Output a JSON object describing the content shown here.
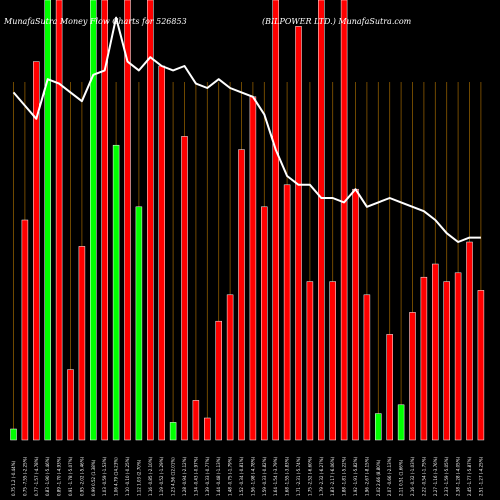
{
  "chart_data": {
    "type": "bar",
    "title_left": "MunafaSutra  Money Flow  Charts for 526853",
    "title_right": "(BILPOWER LTD.) MunafaSutra.com",
    "colors": {
      "background": "#000000",
      "inflow": "#00ff00",
      "outflow": "#ff0000",
      "bar_outline": "#ffffff",
      "line": "#ffffff",
      "grid": "#8b5a00"
    },
    "ylim": [
      0,
      100
    ],
    "grid": true,
    "categories": [
      "0.75 1.2 (-0.44%)",
      "0.75 -7.55 (-2.25%)",
      "0.77 -1.57 (-4.78%)",
      "0.83 -1.90 (-5.46%)",
      "0.89 -1.70 (-4.93%)",
      "0.91 -1.78 (-5.07%)",
      "0.95 -2.02 (-5.46%)",
      "0.99 0.52 (1.38%)",
      "1.03 -0.59 (-1.53%)",
      "1.06 4.79 (14.23%)",
      "1.10 -0.10 (-0.25%)",
      "1.12 1.03 (2.70%)",
      "1.16 -0.85 (-2.10%)",
      "1.19 -0.52 (-1.29%)",
      "1.23 4.56 (12.01%)",
      "1.28 -0.94 (-2.12%)",
      "1.34 -0.43 (-0.97%)",
      "1.39 -0.33 (-0.77%)",
      "1.44 -0.48 (-1.13%)",
      "1.48 -0.75 (-1.79%)",
      "1.52 -0.34 (-0.81%)",
      "1.56 -1.98 (-4.78%)",
      "1.59 -0.33 (-0.82%)",
      "1.64 -1.54 (-3.79%)",
      "1.68 -1.55 (-3.83%)",
      "1.71 -2.31 (-5.74%)",
      "1.75 -2.52 (-6.60%)",
      "1.79 -2.32 (-6.27%)",
      "1.83 -2.17 (-6.06%)",
      "1.88 -1.81 (-5.22%)",
      "1.92 -1.91 (-5.82%)",
      "1.96 -2.67 (-8.15%)",
      "2.02 2.66 (8.80%)",
      "2.07 -0.66 (-2.13%)",
      "2.11 0.51 (1.66%)",
      "2.16 -0.32 (-1.03%)",
      "2.22 -0.54 (-1.75%)",
      "2.27 -1.16 (-3.76%)",
      "2.33 -1.59 (-5.05%)",
      "2.38 -1.28 (-4.05%)",
      "2.45 -1.77 (-5.87%)",
      "2.51 -1.27 (-4.25%)"
    ],
    "flow": [
      "in",
      "out",
      "out",
      "in",
      "out",
      "out",
      "out",
      "in",
      "out",
      "in",
      "out",
      "in",
      "out",
      "out",
      "in",
      "out",
      "out",
      "out",
      "out",
      "out",
      "out",
      "out",
      "out",
      "out",
      "out",
      "out",
      "out",
      "out",
      "out",
      "out",
      "out",
      "out",
      "in",
      "out",
      "in",
      "out",
      "out",
      "out",
      "out",
      "out",
      "out",
      "out"
    ],
    "values": [
      2.5,
      50,
      86,
      100,
      100,
      16,
      44,
      100,
      100,
      67,
      100,
      53,
      100,
      85,
      4,
      69,
      9,
      5,
      27,
      33,
      66,
      78,
      53,
      100,
      58,
      94,
      36,
      100,
      36,
      100,
      57,
      33,
      6,
      24,
      8,
      29,
      37,
      40,
      36,
      38,
      45,
      34
    ],
    "line_values": [
      79,
      76,
      73,
      82,
      81,
      79,
      77,
      83,
      84,
      96,
      86,
      84,
      87,
      85,
      84,
      85,
      81,
      80,
      82,
      80,
      79,
      78,
      74,
      66,
      60,
      58,
      58,
      55,
      55,
      54,
      57,
      53,
      54,
      55,
      54,
      53,
      52,
      50,
      47,
      45,
      46,
      46
    ]
  }
}
